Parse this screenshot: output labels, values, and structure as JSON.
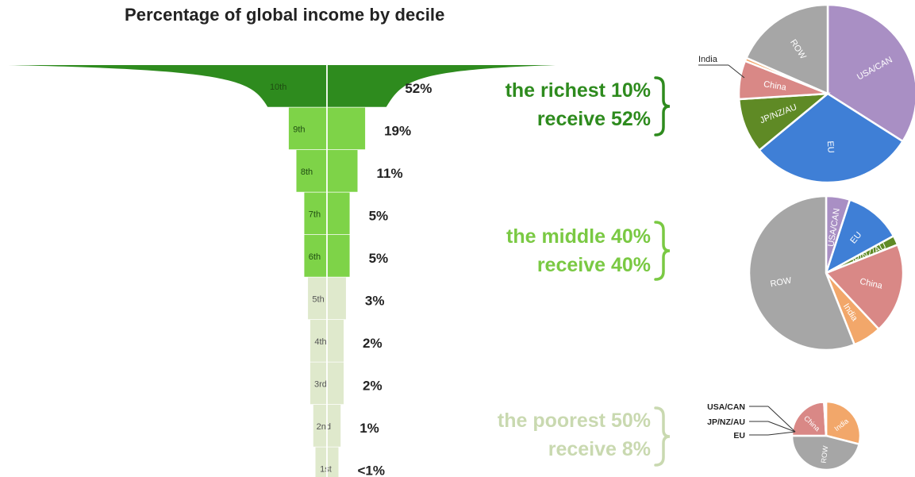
{
  "title": "Percentage of global income by decile",
  "chart_data": {
    "type": "funnel-bar",
    "title": "Percentage of global income by decile",
    "deciles": [
      {
        "label": "10th",
        "value": 52,
        "value_label": "52%"
      },
      {
        "label": "9th",
        "value": 19,
        "value_label": "19%"
      },
      {
        "label": "8th",
        "value": 11,
        "value_label": "11%"
      },
      {
        "label": "7th",
        "value": 5,
        "value_label": "5%"
      },
      {
        "label": "6th",
        "value": 5,
        "value_label": "5%"
      },
      {
        "label": "5th",
        "value": 3,
        "value_label": "3%"
      },
      {
        "label": "4th",
        "value": 2,
        "value_label": "2%"
      },
      {
        "label": "3rd",
        "value": 2,
        "value_label": "2%"
      },
      {
        "label": "2nd",
        "value": 1,
        "value_label": "1%"
      },
      {
        "label": "1st",
        "value": 0.5,
        "value_label": "<1%"
      }
    ],
    "groups": [
      {
        "line1": "the richest 10%",
        "line2": "receive 52%",
        "color": "#2e8b1e"
      },
      {
        "line1": "the middle 40%",
        "line2": "receive 40%",
        "color": "#7ac943"
      },
      {
        "line1": "the poorest 50%",
        "line2": "receive 8%",
        "color": "#c9d9b0"
      }
    ],
    "colors": {
      "richest": "#2e8b1e",
      "middle": "#7ed348",
      "poorest": "#dfe9cc"
    },
    "pies": [
      {
        "group": "richest",
        "slices": [
          {
            "label": "USA/CAN",
            "value": 34,
            "color": "#a98fc4"
          },
          {
            "label": "EU",
            "value": 30,
            "color": "#3f7fd6"
          },
          {
            "label": "JP/NZ/AU",
            "value": 10,
            "color": "#5f8a25"
          },
          {
            "label": "China",
            "value": 7,
            "color": "#d98886"
          },
          {
            "label": "India",
            "value": 0.6,
            "color": "#f2a76a"
          },
          {
            "label": "ROW",
            "value": 18.4,
            "color": "#a6a6a6"
          }
        ]
      },
      {
        "group": "middle",
        "slices": [
          {
            "label": "USA/CAN",
            "value": 5,
            "color": "#a98fc4"
          },
          {
            "label": "EU",
            "value": 12,
            "color": "#3f7fd6"
          },
          {
            "label": "JP/NZ/AU",
            "value": 2,
            "color": "#5f8a25"
          },
          {
            "label": "China",
            "value": 19,
            "color": "#d98886"
          },
          {
            "label": "India",
            "value": 6,
            "color": "#f2a76a"
          },
          {
            "label": "ROW",
            "value": 56,
            "color": "#a6a6a6"
          }
        ]
      },
      {
        "group": "poorest",
        "slices": [
          {
            "label": "USA/CAN",
            "value": 0.3,
            "color": "#a98fc4"
          },
          {
            "label": "JP/NZ/AU",
            "value": 0.3,
            "color": "#5f8a25"
          },
          {
            "label": "EU",
            "value": 0.4,
            "color": "#3f7fd6"
          },
          {
            "label": "India",
            "value": 29,
            "color": "#f2a76a"
          },
          {
            "label": "ROW",
            "value": 46,
            "color": "#a6a6a6"
          },
          {
            "label": "China",
            "value": 24,
            "color": "#d98886"
          }
        ]
      }
    ],
    "callouts": {
      "richest": [
        "India"
      ],
      "poorest": [
        "USA/CAN",
        "JP/NZ/AU",
        "EU"
      ]
    }
  }
}
